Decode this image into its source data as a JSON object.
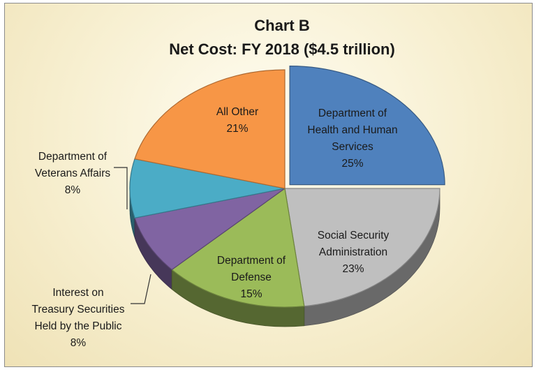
{
  "chart_data": {
    "type": "pie",
    "title": "Chart B",
    "subtitle": "Net Cost: FY 2018 ($4.5 trillion)",
    "style": "3d-exploded",
    "slices": [
      {
        "label_lines": [
          "Department of",
          "Health and Human",
          "Services",
          "25%"
        ],
        "value": 25,
        "color": "#4f81bd"
      },
      {
        "label_lines": [
          "Social Security",
          "Administration",
          "23%"
        ],
        "value": 23,
        "color": "#bfbfbf"
      },
      {
        "label_lines": [
          "Department of",
          "Defense",
          "15%"
        ],
        "value": 15,
        "color": "#9bbb59"
      },
      {
        "label_lines": [
          "Interest on",
          "Treasury Securities",
          "Held by the Public",
          "8%"
        ],
        "value": 8,
        "color": "#8064a2"
      },
      {
        "label_lines": [
          "Department of",
          "Veterans Affairs",
          "8%"
        ],
        "value": 8,
        "color": "#4bacc6"
      },
      {
        "label_lines": [
          "All Other",
          "21%"
        ],
        "value": 21,
        "color": "#f79646"
      }
    ]
  }
}
